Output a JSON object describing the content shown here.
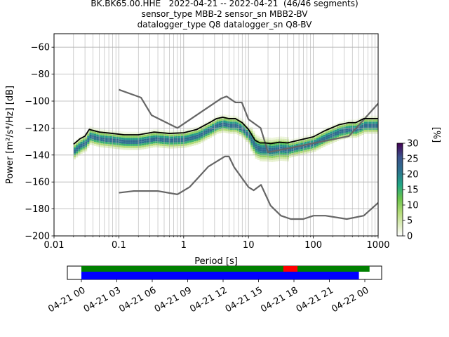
{
  "chart_data": {
    "type": "heatmap",
    "title_lines": [
      "BK.BK65.00.HHE   2022-04-21 -- 2022-04-21  (46/46 segments)",
      "sensor_type MBB-2 sensor_sn MBB2-BV",
      "datalogger_type Q8 datalogger_sn Q8-BV"
    ],
    "xlabel": "Period [s]",
    "ylabel": "Power [m²/s⁴/Hz] [dB]",
    "x_scale": "log",
    "xlim": [
      0.01,
      1000
    ],
    "ylim": [
      -200,
      -50
    ],
    "x_ticks": [
      0.01,
      0.1,
      1,
      10,
      100,
      1000
    ],
    "x_tick_labels": [
      "0.01",
      "0.1",
      "1",
      "10",
      "100",
      "1000"
    ],
    "y_ticks": [
      -200,
      -180,
      -160,
      -140,
      -120,
      -100,
      -80,
      -60
    ],
    "y_tick_labels": [
      "−200",
      "−180",
      "−160",
      "−140",
      "−120",
      "−100",
      "−80",
      "−60"
    ],
    "grid": true,
    "colorbar": {
      "label": "[%]",
      "range": [
        0,
        30
      ],
      "ticks": [
        0,
        5,
        10,
        15,
        20,
        25,
        30
      ],
      "tick_labels": [
        "0",
        "5",
        "10",
        "15",
        "20",
        "25",
        "30"
      ]
    },
    "series": [
      {
        "role": "noise-model-high",
        "color": "#666666",
        "x": [
          0.1,
          0.22,
          0.32,
          0.8,
          3.8,
          4.6,
          6.3,
          7.9,
          10,
          15.4,
          20,
          354.8,
          10000
        ],
        "y": [
          -91.5,
          -97.4,
          -110.5,
          -120,
          -98,
          -96.5,
          -101,
          -101,
          -113.5,
          -120,
          -138,
          -126,
          -48
        ]
      },
      {
        "role": "noise-model-low",
        "color": "#666666",
        "x": [
          0.1,
          0.17,
          0.4,
          0.8,
          1.24,
          2.4,
          4.3,
          5,
          6,
          10,
          12,
          15.6,
          21.9,
          31.6,
          45,
          70,
          101,
          154,
          328,
          600,
          10000
        ],
        "y": [
          -168,
          -166.7,
          -166.7,
          -169.2,
          -163.7,
          -148.6,
          -141.1,
          -141.1,
          -149,
          -163.8,
          -166.2,
          -162.1,
          -177.5,
          -185,
          -187.5,
          -187.5,
          -185,
          -185,
          -187.5,
          -185,
          -132.2
        ]
      },
      {
        "role": "mode",
        "color": "#000000",
        "x": [
          0.02,
          0.025,
          0.03,
          0.035,
          0.05,
          0.08,
          0.12,
          0.2,
          0.35,
          0.6,
          1,
          1.6,
          2.5,
          3.2,
          4,
          5,
          6.3,
          8,
          10,
          12.6,
          15,
          18,
          22,
          30,
          40,
          60,
          100,
          150,
          250,
          350,
          450,
          600,
          1000
        ],
        "y": [
          -132,
          -128,
          -126,
          -121,
          -123,
          -124,
          -125,
          -125,
          -123,
          -124,
          -123.5,
          -121,
          -116,
          -113,
          -112,
          -113,
          -113,
          -116,
          -121,
          -129,
          -131,
          -131,
          -131.5,
          -130.5,
          -131,
          -129,
          -126.5,
          -122,
          -117.5,
          -116,
          -116,
          -113,
          -113
        ]
      }
    ],
    "timeline": {
      "tick_labels": [
        "04-21 00",
        "04-21 03",
        "04-21 06",
        "04-21 09",
        "04-21 12",
        "04-21 15",
        "04-21 18",
        "04-21 21",
        "04-22 00"
      ],
      "green_bar": {
        "start_hour": 0,
        "end_hour": 24.4,
        "color": "#008000"
      },
      "red_marker": {
        "start_hour": 17.1,
        "end_hour": 18.3,
        "color": "#ff0000"
      },
      "blue_bar": {
        "start_hour": 0,
        "end_hour": 23.5,
        "color": "#0000ff"
      }
    }
  }
}
